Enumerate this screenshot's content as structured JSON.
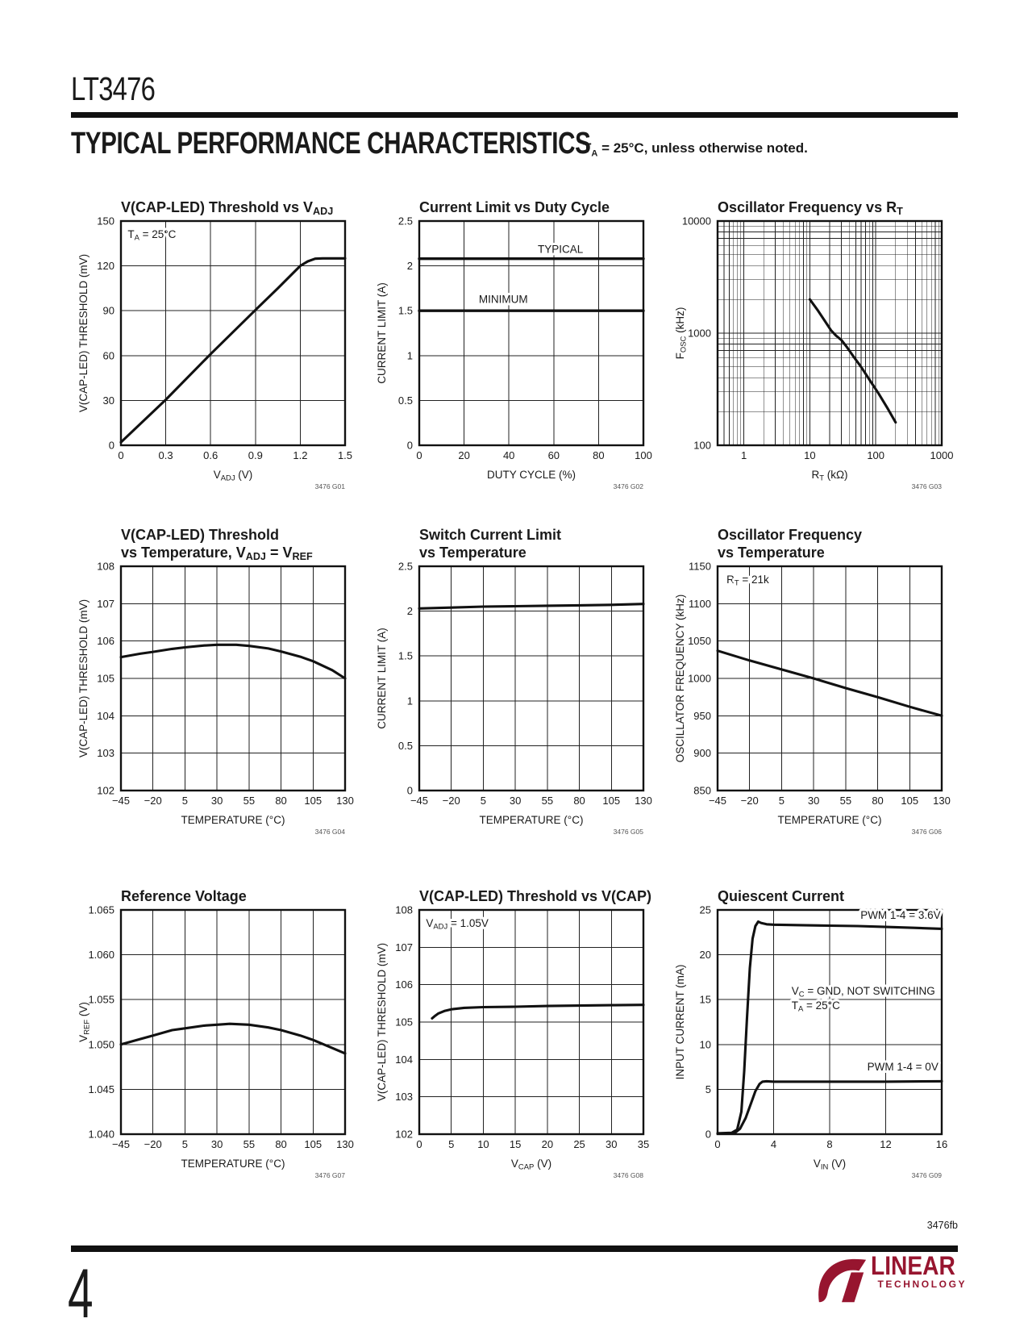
{
  "page": {
    "part_number": "LT3476",
    "section": {
      "title": "TYPICAL PERFORMANCE CHARACTERISTICS",
      "note_t": "T",
      "note_sub": "A",
      "note_rest": " = 25°C, unless otherwise noted."
    },
    "footer": {
      "doc_code": "3476fb",
      "page_number": "4"
    },
    "logo": {
      "mark": "LT",
      "name": "LINEAR",
      "subtitle": "TECHNOLOGY",
      "color": "#97152F"
    },
    "colors": {
      "ink": "#1a1a1a",
      "grid": "#222222",
      "marker_text": "#555555"
    }
  },
  "chart_data": [
    {
      "id": "3476 G01",
      "type": "line",
      "title_lines": [
        "V(CAP-LED) Threshold vs V_{ADJ}"
      ],
      "x": {
        "label": "V_{ADJ} (V)",
        "min": 0,
        "max": 1.5,
        "ticks": [
          0,
          0.3,
          0.6,
          0.9,
          1.2,
          1.5
        ],
        "tick_labels": [
          "0",
          "0.3",
          "0.6",
          "0.9",
          "1.2",
          "1.5"
        ]
      },
      "y": {
        "label": "V(CAP-LED) THRESHOLD (mV)",
        "min": 0,
        "max": 150,
        "ticks": [
          0,
          30,
          60,
          90,
          120,
          150
        ],
        "tick_labels": [
          "0",
          "30",
          "60",
          "90",
          "120",
          "150"
        ]
      },
      "annotations": [
        {
          "text": "T_{A} = 25°C",
          "rx": 0.03,
          "ry": 0.075,
          "anchor": "start"
        }
      ],
      "series": [
        {
          "name": "V(CAP-LED) threshold",
          "points": [
            [
              0,
              2
            ],
            [
              0.3,
              30.5
            ],
            [
              0.6,
              61
            ],
            [
              0.9,
              90.5
            ],
            [
              1.05,
              105
            ],
            [
              1.15,
              115
            ],
            [
              1.2,
              120
            ],
            [
              1.25,
              123
            ],
            [
              1.3,
              124.8
            ],
            [
              1.35,
              125
            ],
            [
              1.5,
              125
            ]
          ]
        }
      ]
    },
    {
      "id": "3476 G02",
      "type": "line",
      "title_lines": [
        "Current Limit vs Duty Cycle"
      ],
      "x": {
        "label": "DUTY CYCLE (%)",
        "min": 0,
        "max": 100,
        "ticks": [
          0,
          20,
          40,
          60,
          80,
          100
        ],
        "tick_labels": [
          "0",
          "20",
          "40",
          "60",
          "80",
          "100"
        ]
      },
      "y": {
        "label": "CURRENT LIMIT (A)",
        "min": 0,
        "max": 2.5,
        "ticks": [
          0,
          0.5,
          1,
          1.5,
          2,
          2.5
        ],
        "tick_labels": [
          "0",
          "0.5",
          "1",
          "1.5",
          "2",
          "2.5"
        ]
      },
      "annotations": [
        {
          "text": "TYPICAL",
          "rx": 0.63,
          "ry": 0.142,
          "anchor": "middle"
        },
        {
          "text": "MINIMUM",
          "rx": 0.375,
          "ry": 0.365,
          "anchor": "middle"
        }
      ],
      "series": [
        {
          "name": "TYPICAL",
          "width": 3.4,
          "points": [
            [
              0,
              2.08
            ],
            [
              100,
              2.08
            ]
          ]
        },
        {
          "name": "MINIMUM",
          "width": 3.4,
          "points": [
            [
              0,
              1.5
            ],
            [
              100,
              1.5
            ]
          ]
        }
      ]
    },
    {
      "id": "3476 G03",
      "type": "line",
      "title_lines": [
        "Oscillator Frequency vs R_{T}"
      ],
      "x": {
        "label": "R_{T} (kΩ)",
        "scale": "log",
        "min": 0.4,
        "max": 1000,
        "ticks": [
          1,
          10,
          100,
          1000
        ],
        "tick_labels": [
          "1",
          "10",
          "100",
          "1000"
        ]
      },
      "y": {
        "label": "F_{OSC} (kHz)",
        "scale": "log",
        "min": 100,
        "max": 10000,
        "ticks": [
          100,
          1000,
          10000
        ],
        "tick_labels": [
          "100",
          "1000",
          "10000"
        ]
      },
      "annotations": [],
      "series": [
        {
          "name": "oscillator frequency",
          "points": [
            [
              10,
              2000
            ],
            [
              13,
              1620
            ],
            [
              17,
              1280
            ],
            [
              21,
              1060
            ],
            [
              25,
              950
            ],
            [
              30,
              870
            ],
            [
              36,
              760
            ],
            [
              45,
              630
            ],
            [
              60,
              500
            ],
            [
              80,
              385
            ],
            [
              110,
              290
            ],
            [
              150,
              215
            ],
            [
              200,
              160
            ]
          ]
        }
      ]
    },
    {
      "id": "3476 G04",
      "type": "line",
      "title_lines": [
        "V(CAP-LED) Threshold",
        "vs Temperature, V_{ADJ} = V_{REF}"
      ],
      "x": {
        "label": "TEMPERATURE (°C)",
        "min": -45,
        "max": 130,
        "ticks": [
          -45,
          -20,
          5,
          30,
          55,
          80,
          105,
          130
        ],
        "tick_labels": [
          "−45",
          "−20",
          "5",
          "30",
          "55",
          "80",
          "105",
          "130"
        ]
      },
      "y": {
        "label": "V(CAP-LED) THRESHOLD (mV)",
        "min": 102,
        "max": 108,
        "ticks": [
          102,
          103,
          104,
          105,
          106,
          107,
          108
        ],
        "tick_labels": [
          "102",
          "103",
          "104",
          "105",
          "106",
          "107",
          "108"
        ]
      },
      "annotations": [],
      "series": [
        {
          "name": "threshold",
          "points": [
            [
              -45,
              105.57
            ],
            [
              -30,
              105.66
            ],
            [
              -20,
              105.71
            ],
            [
              -5,
              105.79
            ],
            [
              5,
              105.83
            ],
            [
              20,
              105.88
            ],
            [
              30,
              105.9
            ],
            [
              45,
              105.9
            ],
            [
              55,
              105.87
            ],
            [
              70,
              105.8
            ],
            [
              80,
              105.72
            ],
            [
              95,
              105.58
            ],
            [
              105,
              105.46
            ],
            [
              120,
              105.22
            ],
            [
              130,
              105.0
            ]
          ]
        }
      ]
    },
    {
      "id": "3476 G05",
      "type": "line",
      "title_lines": [
        "Switch Current Limit",
        "vs Temperature"
      ],
      "x": {
        "label": "TEMPERATURE (°C)",
        "min": -45,
        "max": 130,
        "ticks": [
          -45,
          -20,
          5,
          30,
          55,
          80,
          105,
          130
        ],
        "tick_labels": [
          "−45",
          "−20",
          "5",
          "30",
          "55",
          "80",
          "105",
          "130"
        ]
      },
      "y": {
        "label": "CURRENT LIMIT (A)",
        "min": 0,
        "max": 2.5,
        "ticks": [
          0,
          0.5,
          1,
          1.5,
          2,
          2.5
        ],
        "tick_labels": [
          "0",
          "0.5",
          "1",
          "1.5",
          "2",
          "2.5"
        ]
      },
      "annotations": [],
      "series": [
        {
          "name": "current limit",
          "points": [
            [
              -45,
              2.03
            ],
            [
              -20,
              2.04
            ],
            [
              5,
              2.05
            ],
            [
              30,
              2.055
            ],
            [
              55,
              2.06
            ],
            [
              80,
              2.065
            ],
            [
              105,
              2.07
            ],
            [
              130,
              2.08
            ]
          ]
        }
      ]
    },
    {
      "id": "3476 G06",
      "type": "line",
      "title_lines": [
        "Oscillator Frequency",
        "vs Temperature"
      ],
      "x": {
        "label": "TEMPERATURE (°C)",
        "min": -45,
        "max": 130,
        "ticks": [
          -45,
          -20,
          5,
          30,
          55,
          80,
          105,
          130
        ],
        "tick_labels": [
          "−45",
          "−20",
          "5",
          "30",
          "55",
          "80",
          "105",
          "130"
        ]
      },
      "y": {
        "label": "OSCILLATOR FREQUENCY (kHz)",
        "min": 850,
        "max": 1150,
        "ticks": [
          850,
          900,
          950,
          1000,
          1050,
          1100,
          1150
        ],
        "tick_labels": [
          "850",
          "900",
          "950",
          "1000",
          "1050",
          "1100",
          "1150"
        ]
      },
      "annotations": [
        {
          "text": "R_{T} = 21k",
          "rx": 0.04,
          "ry": 0.075,
          "anchor": "start"
        }
      ],
      "series": [
        {
          "name": "oscillator frequency",
          "points": [
            [
              -45,
              1037
            ],
            [
              -20,
              1024
            ],
            [
              5,
              1012
            ],
            [
              30,
              1000
            ],
            [
              55,
              987
            ],
            [
              80,
              975
            ],
            [
              105,
              962
            ],
            [
              130,
              950
            ]
          ]
        }
      ]
    },
    {
      "id": "3476 G07",
      "type": "line",
      "title_lines": [
        "Reference Voltage"
      ],
      "x": {
        "label": "TEMPERATURE (°C)",
        "min": -45,
        "max": 130,
        "ticks": [
          -45,
          -20,
          5,
          30,
          55,
          80,
          105,
          130
        ],
        "tick_labels": [
          "−45",
          "−20",
          "5",
          "30",
          "55",
          "80",
          "105",
          "130"
        ]
      },
      "y": {
        "label": "V_{REF} (V)",
        "min": 1.04,
        "max": 1.065,
        "ticks": [
          1.04,
          1.045,
          1.05,
          1.055,
          1.06,
          1.065
        ],
        "tick_labels": [
          "1.040",
          "1.045",
          "1.050",
          "1.055",
          "1.060",
          "1.065"
        ]
      },
      "annotations": [],
      "series": [
        {
          "name": "reference voltage",
          "points": [
            [
              -45,
              1.05
            ],
            [
              -30,
              1.0506
            ],
            [
              -20,
              1.051
            ],
            [
              -5,
              1.0516
            ],
            [
              5,
              1.0518
            ],
            [
              20,
              1.0521
            ],
            [
              30,
              1.0522
            ],
            [
              40,
              1.0523
            ],
            [
              55,
              1.0522
            ],
            [
              70,
              1.0519
            ],
            [
              80,
              1.0516
            ],
            [
              95,
              1.051
            ],
            [
              105,
              1.0505
            ],
            [
              120,
              1.0496
            ],
            [
              130,
              1.049
            ]
          ]
        }
      ]
    },
    {
      "id": "3476 G08",
      "type": "line",
      "title_lines": [
        "V(CAP-LED) Threshold vs V(CAP)"
      ],
      "x": {
        "label": "V_{CAP} (V)",
        "min": 0,
        "max": 35,
        "ticks": [
          0,
          5,
          10,
          15,
          20,
          25,
          30,
          35
        ],
        "tick_labels": [
          "0",
          "5",
          "10",
          "15",
          "20",
          "25",
          "30",
          "35"
        ]
      },
      "y": {
        "label": "V(CAP-LED) THRESHOLD (mV)",
        "min": 102,
        "max": 108,
        "ticks": [
          102,
          103,
          104,
          105,
          106,
          107,
          108
        ],
        "tick_labels": [
          "102",
          "103",
          "104",
          "105",
          "106",
          "107",
          "108"
        ]
      },
      "annotations": [
        {
          "text": "V_{ADJ} = 1.05V",
          "rx": 0.03,
          "ry": 0.075,
          "anchor": "start"
        }
      ],
      "series": [
        {
          "name": "threshold",
          "points": [
            [
              2,
              105.1
            ],
            [
              2.5,
              105.17
            ],
            [
              3,
              105.23
            ],
            [
              4,
              105.3
            ],
            [
              5,
              105.34
            ],
            [
              7,
              105.38
            ],
            [
              10,
              105.4
            ],
            [
              15,
              105.41
            ],
            [
              20,
              105.43
            ],
            [
              25,
              105.44
            ],
            [
              30,
              105.45
            ],
            [
              35,
              105.46
            ]
          ]
        }
      ]
    },
    {
      "id": "3476 G09",
      "type": "line",
      "title_lines": [
        "Quiescent Current"
      ],
      "x": {
        "label": "V_{IN} (V)",
        "min": 0,
        "max": 16,
        "ticks": [
          0,
          4,
          8,
          12,
          16
        ],
        "tick_labels": [
          "0",
          "4",
          "8",
          "12",
          "16"
        ]
      },
      "y": {
        "label": "INPUT CURRENT (mA)",
        "min": 0,
        "max": 25,
        "ticks": [
          0,
          5,
          10,
          15,
          20,
          25
        ],
        "tick_labels": [
          "0",
          "5",
          "10",
          "15",
          "20",
          "25"
        ]
      },
      "annotations": [
        {
          "text": "PWM 1-4 = 3.6V",
          "rx": 0.995,
          "ry": 0.04,
          "anchor": "end"
        },
        {
          "text": "V_{C} = GND, NOT SWITCHING",
          "rx": 0.33,
          "ry": 0.378,
          "anchor": "start"
        },
        {
          "text": "T_{A} = 25°C",
          "rx": 0.33,
          "ry": 0.443,
          "anchor": "start"
        },
        {
          "text": "PWM 1-4 = 0V",
          "rx": 0.985,
          "ry": 0.715,
          "anchor": "end"
        }
      ],
      "series": [
        {
          "name": "PWM 1-4 = 3.6V",
          "points": [
            [
              0,
              0.1
            ],
            [
              1.0,
              0.15
            ],
            [
              1.4,
              0.5
            ],
            [
              1.7,
              2.5
            ],
            [
              1.9,
              7
            ],
            [
              2.1,
              13
            ],
            [
              2.3,
              18.5
            ],
            [
              2.5,
              21.8
            ],
            [
              2.7,
              23.2
            ],
            [
              2.9,
              23.7
            ],
            [
              3.1,
              23.55
            ],
            [
              3.5,
              23.4
            ],
            [
              4,
              23.35
            ],
            [
              6,
              23.3
            ],
            [
              8,
              23.25
            ],
            [
              10,
              23.2
            ],
            [
              12,
              23.1
            ],
            [
              14,
              23.0
            ],
            [
              16,
              22.9
            ]
          ]
        },
        {
          "name": "PWM 1-4 = 0V",
          "points": [
            [
              0,
              0.05
            ],
            [
              1.2,
              0.1
            ],
            [
              1.6,
              0.6
            ],
            [
              2.0,
              1.8
            ],
            [
              2.4,
              3.5
            ],
            [
              2.7,
              4.8
            ],
            [
              3.0,
              5.6
            ],
            [
              3.2,
              5.85
            ],
            [
              3.5,
              5.9
            ],
            [
              4,
              5.85
            ],
            [
              8,
              5.85
            ],
            [
              12,
              5.85
            ],
            [
              16,
              5.9
            ]
          ]
        }
      ]
    }
  ]
}
